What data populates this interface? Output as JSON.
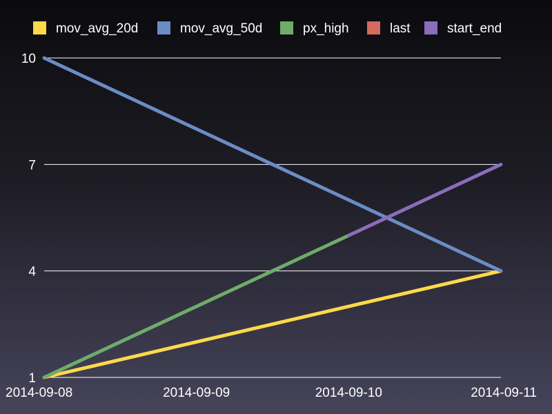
{
  "chart_data": {
    "type": "line",
    "title": "",
    "xlabel": "",
    "ylabel": "",
    "categories": [
      "2014-09-08",
      "2014-09-09",
      "2014-09-10",
      "2014-09-11"
    ],
    "ylim": [
      1,
      10
    ],
    "yticks": [
      "1",
      "4",
      "7",
      "10"
    ],
    "grid": "horizontal",
    "legend_position": "top",
    "series": [
      {
        "name": "mov_avg_20d",
        "color": "#ffd94a",
        "values": [
          1,
          2,
          3,
          4
        ]
      },
      {
        "name": "mov_avg_50d",
        "color": "#6b8cc4",
        "values": [
          10,
          8,
          6,
          4
        ]
      },
      {
        "name": "px_high",
        "color": "#6fac6a",
        "values": [
          1,
          3,
          5,
          null
        ]
      },
      {
        "name": "last",
        "color": "#d46a60",
        "values": [
          null,
          null,
          null,
          null
        ]
      },
      {
        "name": "start_end",
        "color": "#8b6dba",
        "values": [
          null,
          null,
          5,
          7
        ]
      }
    ]
  }
}
